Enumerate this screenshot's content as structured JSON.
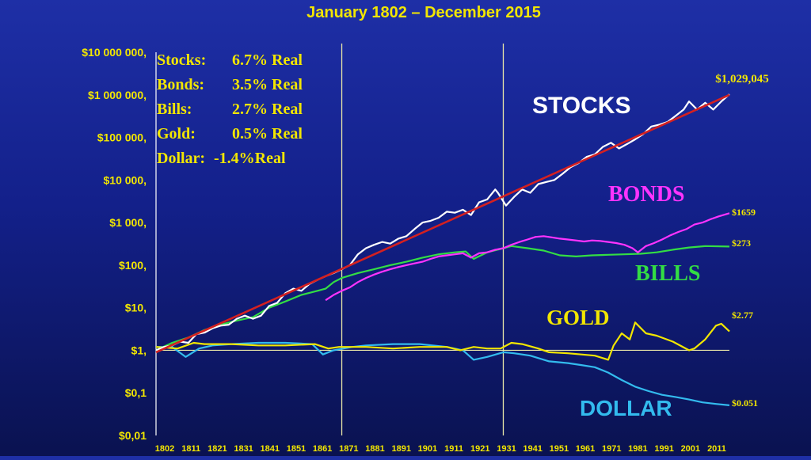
{
  "chart_data": {
    "type": "line",
    "title": "January 1802 – December 2015",
    "y_scale": "log",
    "ylim": [
      0.01,
      10000000
    ],
    "xlim": [
      1802,
      2015
    ],
    "y_ticks": [
      {
        "value": 10000000,
        "label": "$10 000 000,"
      },
      {
        "value": 1000000,
        "label": "$1 000 000,"
      },
      {
        "value": 100000,
        "label": "$100 000,"
      },
      {
        "value": 10000,
        "label": "$10 000,"
      },
      {
        "value": 1000,
        "label": "$1 000,"
      },
      {
        "value": 100,
        "label": "$100,"
      },
      {
        "value": 10,
        "label": "$10,"
      },
      {
        "value": 1,
        "label": "$1,"
      },
      {
        "value": 0.1,
        "label": "$0,1"
      },
      {
        "value": 0.01,
        "label": "$0,01"
      }
    ],
    "x_ticks": [
      "1802",
      "1811",
      "1821",
      "1831",
      "1841",
      "1851",
      "1861",
      "1871",
      "1881",
      "1891",
      "1901",
      "1911",
      "1921",
      "1931",
      "1941",
      "1951",
      "1961",
      "1971",
      "1981",
      "1991",
      "2001",
      "2011"
    ],
    "vertical_lines": [
      1871,
      1931
    ],
    "reference_line_y": 1,
    "returns_box": [
      {
        "label": "Stocks:",
        "value": "6.7% Real"
      },
      {
        "label": "Bonds:",
        "value": "3.5% Real"
      },
      {
        "label": "Bills:",
        "value": "2.7% Real"
      },
      {
        "label": "Gold:",
        "value": "0.5% Real"
      },
      {
        "label": "Dollar:",
        "value": "-1.4%Real"
      }
    ],
    "series": [
      {
        "name": "STOCKS",
        "color": "#ffffff",
        "end_label": "$1,029,045",
        "x": [
          1802,
          1805,
          1808,
          1811,
          1814,
          1817,
          1820,
          1823,
          1826,
          1829,
          1832,
          1835,
          1838,
          1841,
          1844,
          1847,
          1850,
          1853,
          1856,
          1859,
          1862,
          1865,
          1868,
          1871,
          1874,
          1877,
          1880,
          1883,
          1886,
          1889,
          1892,
          1895,
          1898,
          1901,
          1904,
          1907,
          1910,
          1913,
          1916,
          1919,
          1922,
          1925,
          1928,
          1929,
          1932,
          1935,
          1938,
          1941,
          1944,
          1947,
          1950,
          1953,
          1956,
          1959,
          1962,
          1965,
          1968,
          1971,
          1974,
          1977,
          1980,
          1983,
          1986,
          1989,
          1992,
          1995,
          1998,
          2000,
          2003,
          2006,
          2009,
          2012,
          2015
        ],
        "y": [
          1,
          1.2,
          1.3,
          1.6,
          1.5,
          2.4,
          2.6,
          3.3,
          3.8,
          4.0,
          5.5,
          6.5,
          5.5,
          6.5,
          11,
          13,
          22,
          28,
          25,
          36,
          45,
          55,
          65,
          80,
          100,
          180,
          250,
          300,
          350,
          320,
          420,
          480,
          700,
          1000,
          1100,
          1300,
          1800,
          1700,
          2000,
          1500,
          3000,
          3500,
          6000,
          5000,
          2500,
          4000,
          6000,
          5000,
          8000,
          9000,
          10000,
          14000,
          20000,
          25000,
          35000,
          40000,
          60000,
          75000,
          55000,
          70000,
          90000,
          120000,
          180000,
          200000,
          230000,
          320000,
          450000,
          700000,
          450000,
          650000,
          450000,
          700000,
          1029045
        ]
      },
      {
        "name": "BONDS",
        "color": "#ff33ff",
        "end_label": "$1659",
        "x": [
          1865,
          1868,
          1871,
          1874,
          1877,
          1880,
          1883,
          1886,
          1889,
          1892,
          1895,
          1898,
          1901,
          1904,
          1907,
          1910,
          1913,
          1916,
          1919,
          1922,
          1925,
          1928,
          1931,
          1934,
          1937,
          1940,
          1943,
          1946,
          1949,
          1952,
          1955,
          1958,
          1961,
          1964,
          1967,
          1970,
          1973,
          1976,
          1979,
          1981,
          1984,
          1987,
          1990,
          1993,
          1996,
          1999,
          2002,
          2005,
          2008,
          2011,
          2015
        ],
        "y": [
          15,
          20,
          25,
          30,
          40,
          50,
          60,
          70,
          80,
          90,
          100,
          110,
          120,
          140,
          160,
          170,
          180,
          190,
          150,
          190,
          200,
          230,
          250,
          300,
          350,
          400,
          460,
          480,
          450,
          420,
          400,
          380,
          360,
          380,
          370,
          350,
          330,
          300,
          250,
          200,
          280,
          330,
          400,
          500,
          600,
          700,
          900,
          1000,
          1200,
          1400,
          1659
        ]
      },
      {
        "name": "BILLS",
        "color": "#33dd44",
        "end_label": "$273",
        "x": [
          1802,
          1808,
          1814,
          1820,
          1826,
          1832,
          1838,
          1844,
          1850,
          1856,
          1862,
          1865,
          1868,
          1871,
          1877,
          1883,
          1889,
          1895,
          1901,
          1907,
          1913,
          1917,
          1920,
          1925,
          1931,
          1934,
          1940,
          1946,
          1952,
          1958,
          1964,
          1970,
          1976,
          1982,
          1988,
          1994,
          2000,
          2006,
          2015
        ],
        "y": [
          1,
          1.5,
          2,
          3,
          4,
          5,
          6,
          10,
          14,
          20,
          25,
          28,
          40,
          50,
          65,
          80,
          100,
          120,
          150,
          180,
          200,
          210,
          140,
          200,
          250,
          280,
          250,
          220,
          170,
          160,
          170,
          175,
          180,
          185,
          200,
          230,
          260,
          280,
          273
        ]
      },
      {
        "name": "GOLD",
        "color": "#f2e600",
        "end_label": "$2.77",
        "x": [
          1802,
          1810,
          1816,
          1820,
          1830,
          1840,
          1850,
          1861,
          1866,
          1870,
          1880,
          1890,
          1900,
          1910,
          1915,
          1920,
          1925,
          1930,
          1934,
          1938,
          1944,
          1948,
          1955,
          1960,
          1965,
          1970,
          1972,
          1975,
          1978,
          1980,
          1984,
          1988,
          1994,
          2000,
          2002,
          2006,
          2010,
          2012,
          2015
        ],
        "y": [
          1.2,
          1.1,
          1.5,
          1.4,
          1.4,
          1.3,
          1.3,
          1.4,
          1.1,
          1.2,
          1.2,
          1.1,
          1.2,
          1.2,
          1.0,
          1.2,
          1.1,
          1.1,
          1.5,
          1.4,
          1.1,
          0.9,
          0.85,
          0.8,
          0.75,
          0.6,
          1.3,
          2.5,
          1.8,
          4.5,
          2.5,
          2.2,
          1.6,
          1.0,
          1.1,
          1.8,
          3.8,
          4.2,
          2.77
        ]
      },
      {
        "name": "DOLLAR",
        "color": "#33bbee",
        "end_label": "$0.051",
        "x": [
          1802,
          1808,
          1813,
          1818,
          1823,
          1830,
          1840,
          1850,
          1860,
          1864,
          1868,
          1875,
          1880,
          1890,
          1900,
          1910,
          1916,
          1920,
          1925,
          1931,
          1935,
          1941,
          1948,
          1955,
          1960,
          1965,
          1970,
          1975,
          1980,
          1985,
          1990,
          1995,
          2000,
          2005,
          2010,
          2015
        ],
        "y": [
          1.2,
          1.2,
          0.7,
          1.1,
          1.3,
          1.4,
          1.5,
          1.5,
          1.4,
          0.8,
          1.0,
          1.2,
          1.3,
          1.4,
          1.4,
          1.2,
          1.0,
          0.6,
          0.7,
          0.9,
          0.85,
          0.75,
          0.55,
          0.5,
          0.45,
          0.4,
          0.3,
          0.2,
          0.14,
          0.11,
          0.09,
          0.08,
          0.07,
          0.06,
          0.055,
          0.051
        ]
      },
      {
        "name": "",
        "color": "#d42020",
        "note": "trend",
        "x": [
          1802,
          2015
        ],
        "y": [
          0.9,
          1000000
        ]
      }
    ],
    "series_labels": [
      {
        "series": "STOCKS",
        "text": "STOCKS",
        "color": "#ffffff"
      },
      {
        "series": "BONDS",
        "text": "BONDS",
        "color": "#ff33ff"
      },
      {
        "series": "BILLS",
        "text": "BILLS",
        "color": "#33dd44"
      },
      {
        "series": "GOLD",
        "text": "GOLD",
        "color": "#f2e600"
      },
      {
        "series": "DOLLAR",
        "text": "DOLLAR",
        "color": "#33bbee"
      }
    ],
    "grid": false,
    "legend": "none"
  }
}
